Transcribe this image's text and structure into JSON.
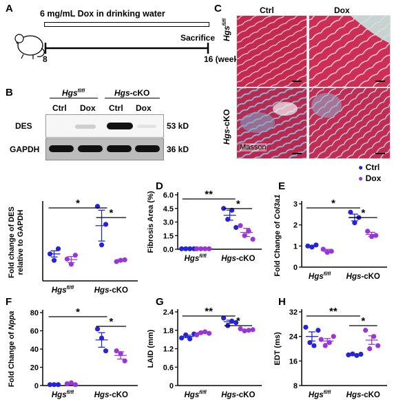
{
  "panels": {
    "A": "A",
    "B": "B",
    "C": "C",
    "D": "D",
    "E": "E",
    "F": "F",
    "G": "G",
    "H": "H"
  },
  "panelA": {
    "treatment": "6 mg/mL Dox in drinking water",
    "sacrifice": "Sacrifice",
    "start": "8",
    "end": "16 (weeks)"
  },
  "panelB": {
    "group1_main": "Hgs",
    "group1_sup": "fl/fl",
    "group2_main": "Hgs",
    "group2_suffix": "-cKO",
    "lane_labels": [
      "Ctrl",
      "Dox",
      "Ctrl",
      "Dox"
    ],
    "row1": "DES",
    "row1_size": "53 kD",
    "row2": "GAPDH",
    "row2_size": "36 kD"
  },
  "panelC": {
    "col1": "Ctrl",
    "col2": "Dox",
    "row1_main": "Hgs",
    "row1_sup": "fl/fl",
    "row2_main": "Hgs",
    "row2_suffix": "-cKO",
    "stain": "Masson"
  },
  "legend": {
    "ctrl": "Ctrl",
    "dox": "Dox",
    "ctrl_color": "#2424d8",
    "dox_color": "#9a36d6"
  },
  "group_labels": {
    "g1_main": "Hgs",
    "g1_sup": "fl/fl",
    "g2_main": "Hgs",
    "g2_suffix": "-cKO"
  },
  "colors": {
    "ctrl": "#2424d8",
    "dox": "#9a36d6",
    "stain_red": "#c8264a",
    "stain_blue": "#7fa6c8"
  },
  "chart_data": [
    {
      "id": "B-quant",
      "type": "scatter",
      "ylabel": "Fold change of DES relative to GAPDH",
      "ylim": [
        0,
        3
      ],
      "yticks": [],
      "categories": [
        "Hgs fl/fl Ctrl",
        "Hgs fl/fl Dox",
        "Hgs-cKO Ctrl",
        "Hgs-cKO Dox"
      ],
      "series": [
        {
          "name": "Ctrl",
          "values": [
            [
              1.05,
              0.8,
              1.25
            ],
            [
              2.9,
              1.4,
              2.2
            ]
          ]
        },
        {
          "name": "Dox",
          "values": [
            [
              0.85,
              0.65,
              1.0
            ],
            [
              0.75,
              0.8,
              0.82
            ]
          ]
        }
      ],
      "means": [
        1.05,
        0.83,
        2.15,
        0.8
      ],
      "sem": [
        0.12,
        0.12,
        0.6,
        0.03
      ],
      "significance": [
        {
          "pair": [
            0,
            2
          ],
          "label": "*"
        },
        {
          "pair": [
            2,
            3
          ],
          "label": "*"
        }
      ]
    },
    {
      "id": "D",
      "type": "scatter",
      "ylabel": "Fibrosis Area (%)",
      "ylim": [
        0,
        6
      ],
      "yticks": [
        "0.0",
        "1.5",
        "3.0",
        "4.5",
        "6.0"
      ],
      "series": [
        {
          "name": "Ctrl",
          "values": [
            [
              0.05,
              0.05,
              0.05,
              0.05
            ],
            [
              4.5,
              3.3,
              4.3,
              2.4
            ]
          ]
        },
        {
          "name": "Dox",
          "values": [
            [
              0.05,
              0.05,
              0.05,
              0.05
            ],
            [
              2.6,
              1.5,
              2.0,
              1.1
            ]
          ]
        }
      ],
      "means": [
        0.05,
        0.05,
        3.75,
        1.85
      ],
      "sem": [
        0.02,
        0.02,
        0.55,
        0.45
      ],
      "significance": [
        {
          "pair": [
            0,
            2
          ],
          "label": "**"
        },
        {
          "pair": [
            2,
            3
          ],
          "label": "*"
        }
      ]
    },
    {
      "id": "E",
      "type": "scatter",
      "ylabel": "Fold Change of Col3a1",
      "ylim": [
        0,
        3
      ],
      "yticks": [
        "0",
        "1",
        "2",
        "3"
      ],
      "series": [
        {
          "name": "Ctrl",
          "values": [
            [
              1.0,
              0.95,
              1.05
            ],
            [
              2.6,
              2.1,
              2.35
            ]
          ]
        },
        {
          "name": "Dox",
          "values": [
            [
              0.85,
              0.7,
              0.75
            ],
            [
              1.7,
              1.45,
              1.5
            ]
          ]
        }
      ],
      "means": [
        1.0,
        0.78,
        2.35,
        1.55
      ],
      "sem": [
        0.03,
        0.06,
        0.16,
        0.1
      ],
      "significance": [
        {
          "pair": [
            0,
            2
          ],
          "label": "*"
        },
        {
          "pair": [
            2,
            3
          ],
          "label": "*"
        }
      ]
    },
    {
      "id": "F",
      "type": "scatter",
      "ylabel": "Fold Change of Nppa",
      "ylim": [
        0,
        80
      ],
      "yticks": [
        "0",
        "20",
        "40",
        "60",
        "80"
      ],
      "series": [
        {
          "name": "Ctrl",
          "values": [
            [
              1,
              1,
              1
            ],
            [
              62,
              52,
              38
            ]
          ]
        },
        {
          "name": "Dox",
          "values": [
            [
              2,
              3,
              1
            ],
            [
              38,
              35,
              27
            ]
          ]
        }
      ],
      "means": [
        1,
        2,
        50,
        33
      ],
      "sem": [
        0.2,
        0.6,
        8,
        4
      ],
      "significance": [
        {
          "pair": [
            0,
            2
          ],
          "label": "*"
        },
        {
          "pair": [
            2,
            3
          ],
          "label": "*"
        }
      ]
    },
    {
      "id": "G",
      "type": "scatter",
      "ylabel": "LAID (mm)",
      "ylim": [
        0,
        2.4
      ],
      "yticks": [
        "0",
        "0.6",
        "1.2",
        "1.8",
        "2.4"
      ],
      "series": [
        {
          "name": "Ctrl",
          "values": [
            [
              1.55,
              1.65,
              1.52,
              1.68
            ],
            [
              2.2,
              1.95,
              2.1,
              2.05
            ]
          ]
        },
        {
          "name": "Dox",
          "values": [
            [
              1.65,
              1.72,
              1.75,
              1.7
            ],
            [
              1.85,
              1.78,
              1.8,
              1.82
            ]
          ]
        }
      ],
      "means": [
        1.6,
        1.72,
        2.08,
        1.8
      ],
      "sem": [
        0.04,
        0.02,
        0.05,
        0.02
      ],
      "significance": [
        {
          "pair": [
            0,
            2
          ],
          "label": "**"
        },
        {
          "pair": [
            2,
            3
          ],
          "label": "*"
        }
      ]
    },
    {
      "id": "H",
      "type": "scatter",
      "ylabel": "EDT (ms)",
      "ylim": [
        8,
        32
      ],
      "yticks": [
        "8",
        "16",
        "24",
        "32"
      ],
      "series": [
        {
          "name": "Ctrl",
          "values": [
            [
              27,
              22,
              21,
              26
            ],
            [
              18,
              18.3,
              17.8,
              18.2
            ]
          ]
        },
        {
          "name": "Dox",
          "values": [
            [
              23,
              21,
              22,
              24
            ],
            [
              26,
              20,
              24,
              21
            ]
          ]
        }
      ],
      "means": [
        24,
        22.5,
        18.1,
        22.8
      ],
      "sem": [
        1.5,
        0.8,
        0.2,
        1.4
      ],
      "significance": [
        {
          "pair": [
            0,
            2
          ],
          "label": "**"
        },
        {
          "pair": [
            2,
            3
          ],
          "label": "*"
        }
      ]
    }
  ]
}
